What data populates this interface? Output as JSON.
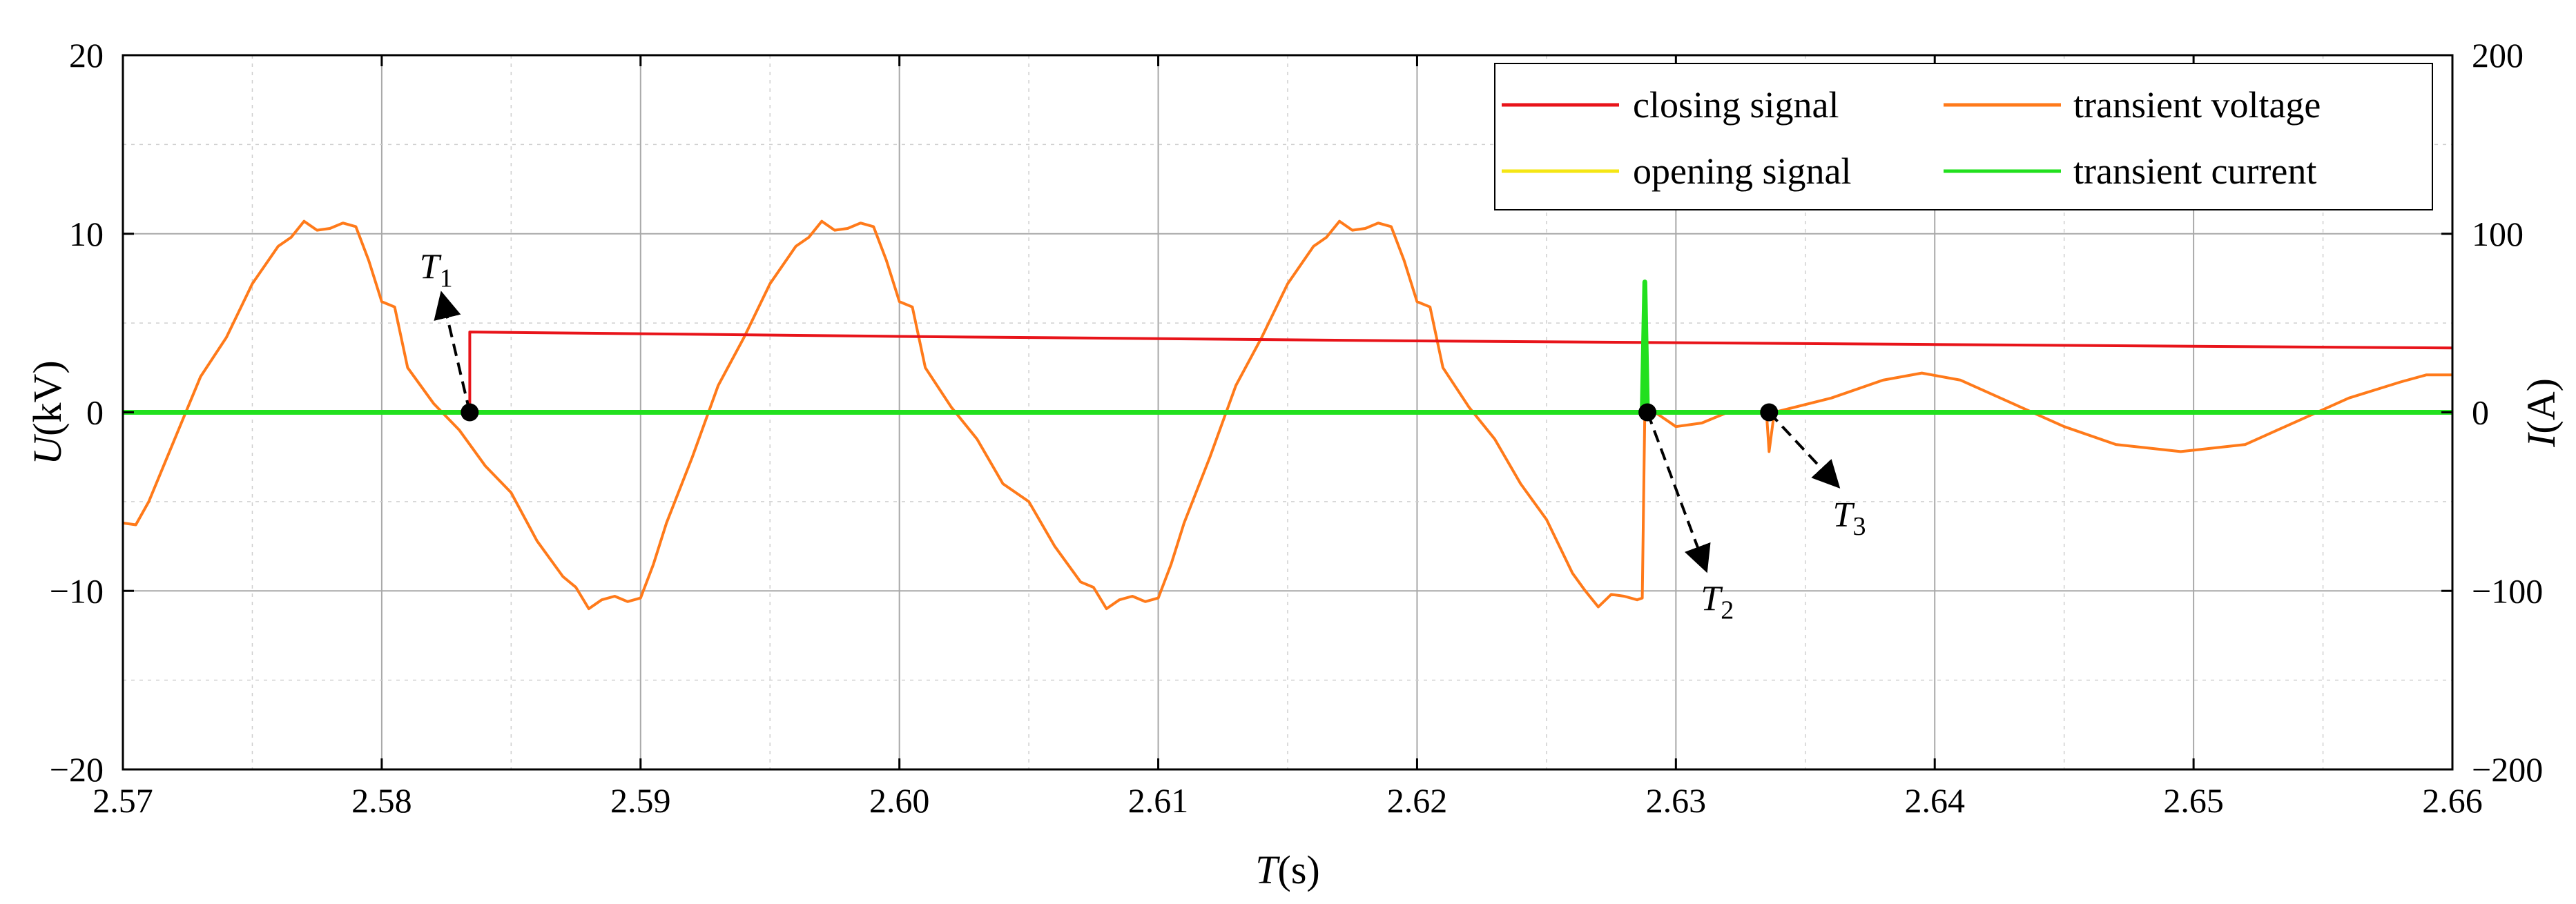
{
  "chart_data": {
    "type": "line",
    "title": "",
    "xlabel": {
      "var": "T",
      "unit": "(s)"
    },
    "ylabel_left": {
      "var": "U",
      "unit": "(kV)"
    },
    "ylabel_right": {
      "var": "I",
      "unit": "(A)"
    },
    "xlim": [
      2.57,
      2.66
    ],
    "ylim_left": [
      -20,
      20
    ],
    "ylim_right": [
      -200,
      200
    ],
    "x_ticks": [
      "2.57",
      "2.58",
      "2.59",
      "2.60",
      "2.61",
      "2.62",
      "2.63",
      "2.64",
      "2.65",
      "2.66"
    ],
    "y_left_ticks": [
      "20",
      "10",
      "0",
      "−10",
      "−20"
    ],
    "y_right_ticks": [
      "200",
      "100",
      "0",
      "−100",
      "−200"
    ],
    "grid": true,
    "legend": {
      "location": "top-right",
      "entries": [
        {
          "label": "closing signal",
          "color": "#e8141a"
        },
        {
          "label": "transient voltage",
          "color": "#ff7a1a"
        },
        {
          "label": "opening signal",
          "color": "#f5e614"
        },
        {
          "label": "transient current",
          "color": "#22e01e"
        }
      ]
    },
    "series": [
      {
        "name": "closing signal",
        "axis": "left",
        "color": "#e8141a",
        "points": [
          [
            2.57,
            0
          ],
          [
            2.5834,
            0
          ],
          [
            2.5834,
            4.5
          ],
          [
            2.6,
            4.25
          ],
          [
            2.62,
            4.0
          ],
          [
            2.64,
            3.8
          ],
          [
            2.66,
            3.6
          ]
        ]
      },
      {
        "name": "transient voltage",
        "axis": "left",
        "color": "#ff7a1a",
        "points": [
          [
            2.57,
            -6.2
          ],
          [
            2.5705,
            -6.3
          ],
          [
            2.571,
            -5.0
          ],
          [
            2.572,
            -1.5
          ],
          [
            2.573,
            2.0
          ],
          [
            2.574,
            4.2
          ],
          [
            2.575,
            7.2
          ],
          [
            2.576,
            9.3
          ],
          [
            2.5765,
            9.8
          ],
          [
            2.577,
            10.7
          ],
          [
            2.5775,
            10.2
          ],
          [
            2.578,
            10.3
          ],
          [
            2.5785,
            10.6
          ],
          [
            2.579,
            10.4
          ],
          [
            2.5795,
            8.5
          ],
          [
            2.58,
            6.2
          ],
          [
            2.5805,
            5.9
          ],
          [
            2.581,
            2.5
          ],
          [
            2.582,
            0.5
          ],
          [
            2.583,
            -1.0
          ],
          [
            2.584,
            -3.0
          ],
          [
            2.585,
            -4.5
          ],
          [
            2.586,
            -7.2
          ],
          [
            2.587,
            -9.2
          ],
          [
            2.5875,
            -9.8
          ],
          [
            2.588,
            -11.0
          ],
          [
            2.5885,
            -10.5
          ],
          [
            2.589,
            -10.3
          ],
          [
            2.5895,
            -10.6
          ],
          [
            2.59,
            -10.4
          ],
          [
            2.5905,
            -8.5
          ],
          [
            2.591,
            -6.2
          ],
          [
            2.592,
            -2.5
          ],
          [
            2.593,
            1.5
          ],
          [
            2.594,
            4.2
          ],
          [
            2.595,
            7.2
          ],
          [
            2.596,
            9.3
          ],
          [
            2.5965,
            9.8
          ],
          [
            2.597,
            10.7
          ],
          [
            2.5975,
            10.2
          ],
          [
            2.598,
            10.3
          ],
          [
            2.5985,
            10.6
          ],
          [
            2.599,
            10.4
          ],
          [
            2.5995,
            8.5
          ],
          [
            2.6,
            6.2
          ],
          [
            2.6005,
            5.9
          ],
          [
            2.601,
            2.5
          ],
          [
            2.602,
            0.3
          ],
          [
            2.603,
            -1.5
          ],
          [
            2.604,
            -4.0
          ],
          [
            2.605,
            -5.0
          ],
          [
            2.606,
            -7.5
          ],
          [
            2.607,
            -9.5
          ],
          [
            2.6075,
            -9.8
          ],
          [
            2.608,
            -11.0
          ],
          [
            2.6085,
            -10.5
          ],
          [
            2.609,
            -10.3
          ],
          [
            2.6095,
            -10.6
          ],
          [
            2.61,
            -10.4
          ],
          [
            2.6105,
            -8.5
          ],
          [
            2.611,
            -6.2
          ],
          [
            2.612,
            -2.5
          ],
          [
            2.613,
            1.5
          ],
          [
            2.614,
            4.2
          ],
          [
            2.615,
            7.2
          ],
          [
            2.616,
            9.3
          ],
          [
            2.6165,
            9.8
          ],
          [
            2.617,
            10.7
          ],
          [
            2.6175,
            10.2
          ],
          [
            2.618,
            10.3
          ],
          [
            2.6185,
            10.6
          ],
          [
            2.619,
            10.4
          ],
          [
            2.6195,
            8.5
          ],
          [
            2.62,
            6.2
          ],
          [
            2.6205,
            5.9
          ],
          [
            2.621,
            2.5
          ],
          [
            2.622,
            0.3
          ],
          [
            2.623,
            -1.5
          ],
          [
            2.624,
            -4.0
          ],
          [
            2.625,
            -6.0
          ],
          [
            2.626,
            -9.0
          ],
          [
            2.6265,
            -10.0
          ],
          [
            2.627,
            -10.9
          ],
          [
            2.6275,
            -10.2
          ],
          [
            2.628,
            -10.3
          ],
          [
            2.6285,
            -10.5
          ],
          [
            2.6287,
            -10.4
          ],
          [
            2.6288,
            0.0
          ],
          [
            2.629,
            0.2
          ],
          [
            2.63,
            -0.8
          ],
          [
            2.631,
            -0.6
          ],
          [
            2.632,
            0.0
          ],
          [
            2.633,
            0.0
          ],
          [
            2.6335,
            0.0
          ],
          [
            2.6336,
            -2.2
          ],
          [
            2.6338,
            0.0
          ],
          [
            2.636,
            0.8
          ],
          [
            2.638,
            1.8
          ],
          [
            2.6395,
            2.2
          ],
          [
            2.641,
            1.8
          ],
          [
            2.643,
            0.5
          ],
          [
            2.645,
            -0.8
          ],
          [
            2.647,
            -1.8
          ],
          [
            2.6495,
            -2.2
          ],
          [
            2.652,
            -1.8
          ],
          [
            2.654,
            -0.5
          ],
          [
            2.656,
            0.8
          ],
          [
            2.658,
            1.7
          ],
          [
            2.659,
            2.1
          ],
          [
            2.66,
            2.1
          ]
        ]
      },
      {
        "name": "opening signal",
        "axis": "left",
        "color": "#f5e614",
        "points": [
          [
            2.57,
            0
          ],
          [
            2.66,
            0
          ]
        ]
      },
      {
        "name": "transient current",
        "axis": "right",
        "color": "#22e01e",
        "points": [
          [
            2.57,
            0
          ],
          [
            2.6287,
            0
          ],
          [
            2.6288,
            73
          ],
          [
            2.6289,
            0
          ],
          [
            2.66,
            0
          ]
        ]
      }
    ],
    "annotations": [
      {
        "label": "T",
        "sub": "1",
        "x": 2.5834,
        "y": 0,
        "label_x": 2.5821,
        "label_y": 8.2
      },
      {
        "label": "T",
        "sub": "2",
        "x": 2.6289,
        "y": 0,
        "label_x": 2.6316,
        "label_y": -10.4
      },
      {
        "label": "T",
        "sub": "3",
        "x": 2.6336,
        "y": 0,
        "label_x": 2.6367,
        "label_y": -5.7
      }
    ]
  }
}
